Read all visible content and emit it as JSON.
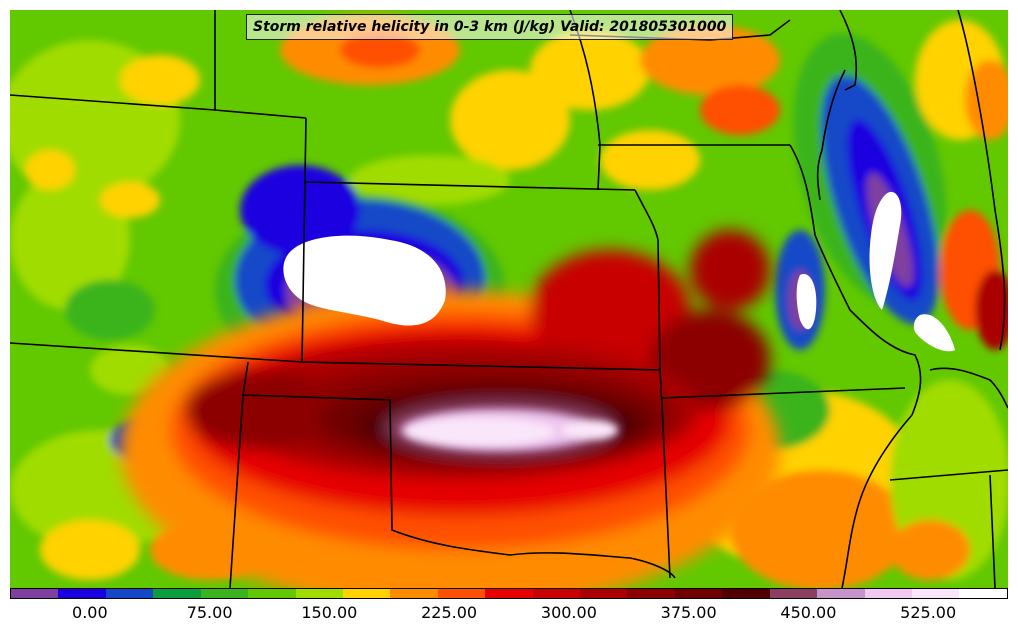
{
  "title": "Storm relative helicity in 0-3 km (J/kg) Valid: 201805301000",
  "map": {
    "base_color": "#62c800",
    "state_line_color": "#000000"
  },
  "colorbar": {
    "colors": [
      "#7f3fa0",
      "#1a00e0",
      "#1448c8",
      "#0a9e3c",
      "#3ab41e",
      "#62c800",
      "#a0dc00",
      "#ffd200",
      "#ff8c00",
      "#ff5000",
      "#e60000",
      "#c80000",
      "#aa0000",
      "#8c0000",
      "#6e0000",
      "#500000",
      "#8a4060",
      "#c893c8",
      "#f0c8f0",
      "#fae6fa",
      "#ffffff"
    ],
    "ticks": [
      "0.00",
      "75.00",
      "150.00",
      "225.00",
      "300.00",
      "375.00",
      "450.00",
      "525.00"
    ]
  }
}
